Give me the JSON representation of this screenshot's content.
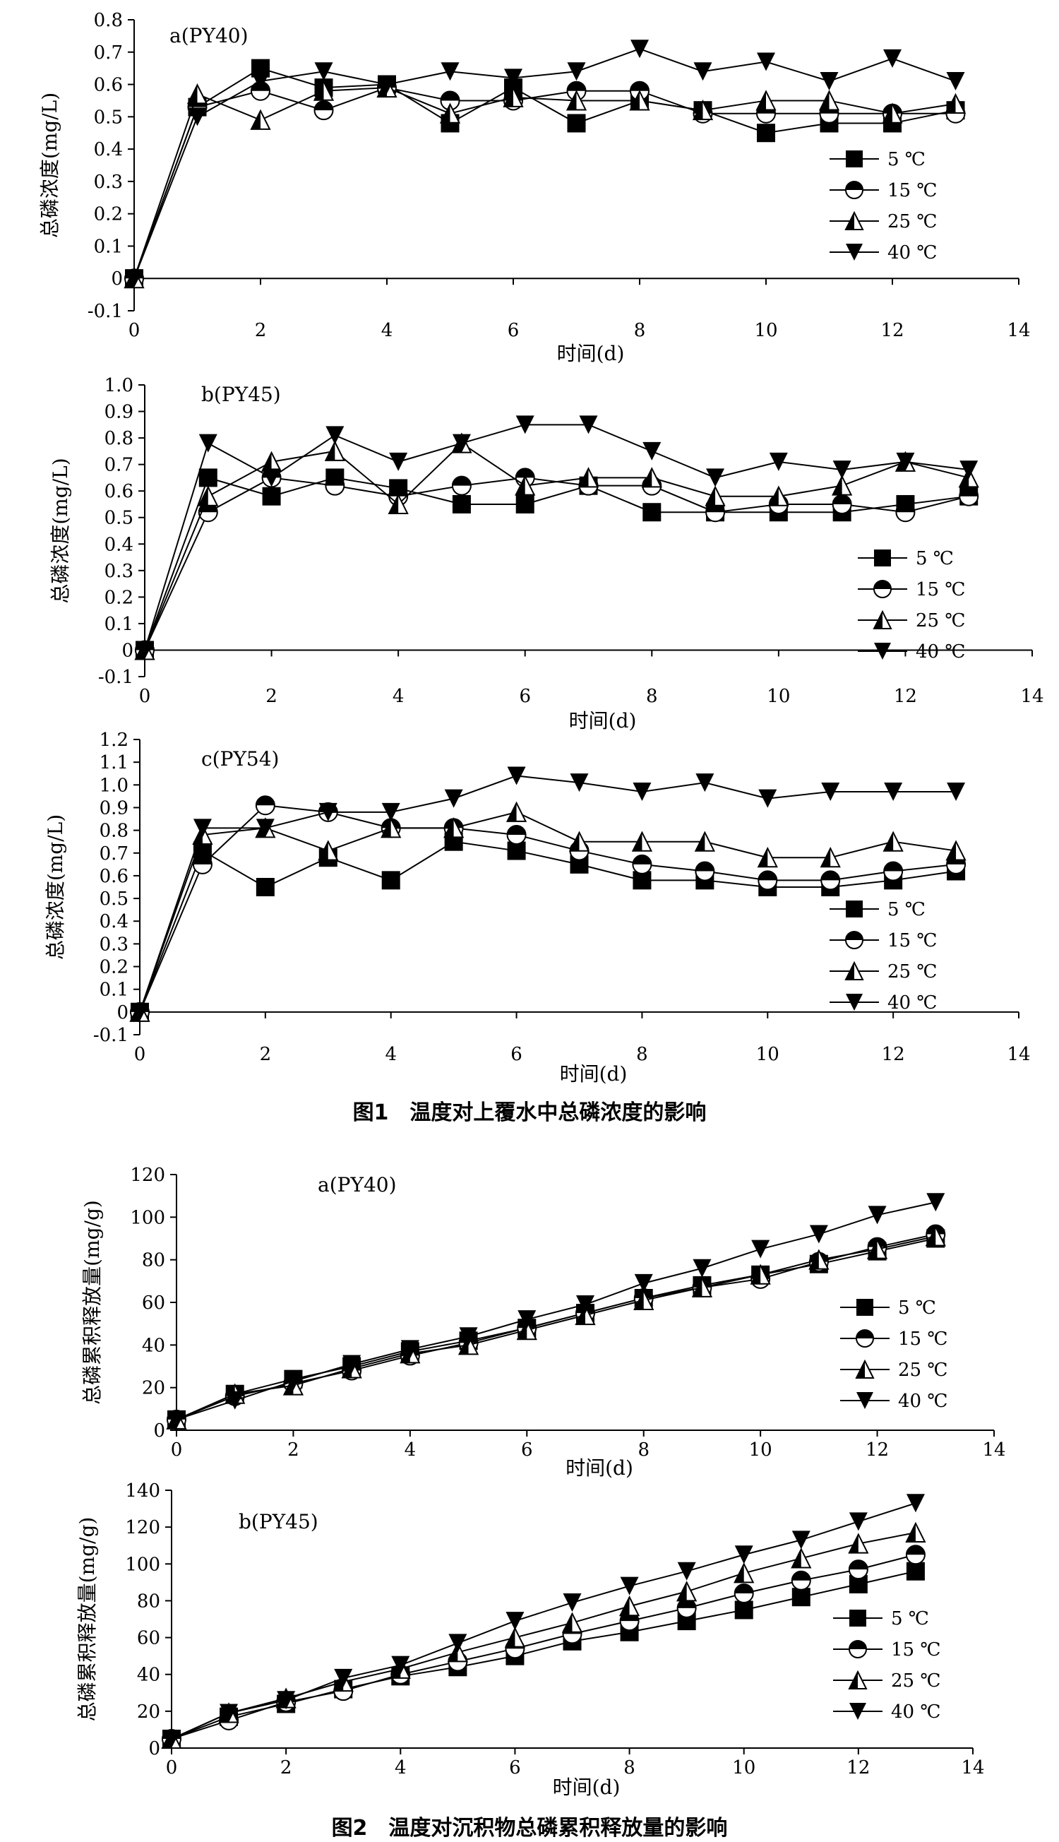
{
  "legend": [
    "5 ℃",
    "15 ℃",
    "25 ℃",
    "40 ℃"
  ],
  "captions": {
    "fig1": "图1　温度对上覆水中总磷浓度的影响",
    "fig2": "图2　温度对沉积物总磷累积释放量的影响"
  },
  "chart_data": [
    {
      "type": "line",
      "title": "a(PY40)",
      "xlabel": "时间(d)",
      "ylabel": "总磷浓度(mg/L)",
      "x": [
        0,
        1,
        2,
        3,
        4,
        5,
        6,
        7,
        8,
        9,
        10,
        11,
        12,
        13
      ],
      "xlim": [
        0,
        14
      ],
      "ylim": [
        -0.1,
        0.8
      ],
      "xticks": [
        "0",
        "2",
        "4",
        "6",
        "8",
        "10",
        "12",
        "14"
      ],
      "yticks": [
        "-0.1",
        "0",
        "0.1",
        "0.2",
        "0.3",
        "0.4",
        "0.5",
        "0.6",
        "0.7",
        "0.8"
      ],
      "grid": false,
      "legend_position": "right-middle",
      "series": [
        {
          "name": "5 ℃",
          "marker": "square",
          "values": [
            0,
            0.53,
            0.65,
            0.59,
            0.6,
            0.48,
            0.59,
            0.48,
            0.55,
            0.52,
            0.45,
            0.48,
            0.48,
            0.52
          ]
        },
        {
          "name": "15 ℃",
          "marker": "half-circle",
          "values": [
            0,
            0.53,
            0.58,
            0.52,
            0.59,
            0.55,
            0.55,
            0.58,
            0.58,
            0.51,
            0.51,
            0.51,
            0.51,
            0.51
          ]
        },
        {
          "name": "25 ℃",
          "marker": "triangle-up",
          "values": [
            0,
            0.57,
            0.49,
            0.58,
            0.59,
            0.51,
            0.56,
            0.55,
            0.55,
            0.52,
            0.55,
            0.55,
            0.51,
            0.54
          ]
        },
        {
          "name": "40 ℃",
          "marker": "triangle-down",
          "values": [
            0,
            0.5,
            0.61,
            0.64,
            0.6,
            0.64,
            0.62,
            0.64,
            0.71,
            0.64,
            0.67,
            0.61,
            0.68,
            0.61
          ]
        }
      ]
    },
    {
      "type": "line",
      "title": "b(PY45)",
      "xlabel": "时间(d)",
      "ylabel": "总磷浓度(mg/L)",
      "x": [
        0,
        1,
        2,
        3,
        4,
        5,
        6,
        7,
        8,
        9,
        10,
        11,
        12,
        13
      ],
      "xlim": [
        0,
        14
      ],
      "ylim": [
        -0.1,
        1.0
      ],
      "xticks": [
        "0",
        "2",
        "4",
        "6",
        "8",
        "10",
        "12",
        "14"
      ],
      "yticks": [
        "-0.1",
        "0",
        "0.1",
        "0.2",
        "0.3",
        "0.4",
        "0.5",
        "0.6",
        "0.7",
        "0.8",
        "0.9",
        "1.0"
      ],
      "grid": false,
      "legend_position": "right-middle",
      "series": [
        {
          "name": "5 ℃",
          "marker": "square",
          "values": [
            0,
            0.65,
            0.58,
            0.65,
            0.61,
            0.55,
            0.55,
            0.62,
            0.52,
            0.52,
            0.52,
            0.52,
            0.55,
            0.58
          ]
        },
        {
          "name": "15 ℃",
          "marker": "half-circle",
          "values": [
            0,
            0.52,
            0.65,
            0.62,
            0.58,
            0.62,
            0.65,
            0.62,
            0.62,
            0.52,
            0.55,
            0.55,
            0.52,
            0.58
          ]
        },
        {
          "name": "25 ℃",
          "marker": "triangle-up",
          "values": [
            0,
            0.58,
            0.71,
            0.75,
            0.55,
            0.78,
            0.62,
            0.65,
            0.65,
            0.58,
            0.58,
            0.62,
            0.71,
            0.65
          ]
        },
        {
          "name": "40 ℃",
          "marker": "triangle-down",
          "values": [
            0,
            0.78,
            0.65,
            0.81,
            0.71,
            0.78,
            0.85,
            0.85,
            0.75,
            0.65,
            0.71,
            0.68,
            0.71,
            0.68
          ]
        }
      ]
    },
    {
      "type": "line",
      "title": "c(PY54)",
      "xlabel": "时间(d)",
      "ylabel": "总磷浓度(mg/L)",
      "x": [
        0,
        1,
        2,
        3,
        4,
        5,
        6,
        7,
        8,
        9,
        10,
        11,
        12,
        13
      ],
      "xlim": [
        0,
        14
      ],
      "ylim": [
        -0.1,
        1.2
      ],
      "xticks": [
        "0",
        "2",
        "4",
        "6",
        "8",
        "10",
        "12",
        "14"
      ],
      "yticks": [
        "-0.1",
        "0",
        "0.1",
        "0.2",
        "0.3",
        "0.4",
        "0.5",
        "0.6",
        "0.7",
        "0.8",
        "0.9",
        "1.0",
        "1.1",
        "1.2"
      ],
      "grid": false,
      "legend_position": "right-bottom",
      "series": [
        {
          "name": "5 ℃",
          "marker": "square",
          "values": [
            0,
            0.71,
            0.55,
            0.68,
            0.58,
            0.75,
            0.71,
            0.65,
            0.58,
            0.58,
            0.55,
            0.55,
            0.58,
            0.62
          ]
        },
        {
          "name": "15 ℃",
          "marker": "half-circle",
          "values": [
            0,
            0.65,
            0.91,
            0.88,
            0.81,
            0.81,
            0.78,
            0.71,
            0.65,
            0.62,
            0.58,
            0.58,
            0.62,
            0.65
          ]
        },
        {
          "name": "25 ℃",
          "marker": "triangle-up",
          "values": [
            0,
            0.78,
            0.81,
            0.71,
            0.81,
            0.81,
            0.88,
            0.75,
            0.75,
            0.75,
            0.68,
            0.68,
            0.75,
            0.71
          ]
        },
        {
          "name": "40 ℃",
          "marker": "triangle-down",
          "values": [
            0,
            0.81,
            0.81,
            0.88,
            0.88,
            0.94,
            1.04,
            1.01,
            0.97,
            1.01,
            0.94,
            0.97,
            0.97,
            0.97
          ]
        }
      ]
    },
    {
      "type": "line",
      "title": "a(PY40)",
      "xlabel": "时间(d)",
      "ylabel": "总磷累积释放量(mg/g)",
      "x": [
        0,
        1,
        2,
        3,
        4,
        5,
        6,
        7,
        8,
        9,
        10,
        11,
        12,
        13
      ],
      "xlim": [
        0,
        14
      ],
      "ylim": [
        0,
        120
      ],
      "xticks": [
        "0",
        "2",
        "4",
        "6",
        "8",
        "10",
        "12",
        "14"
      ],
      "yticks": [
        "0",
        "20",
        "40",
        "60",
        "80",
        "100",
        "120"
      ],
      "grid": false,
      "legend_position": "right-middle",
      "series": [
        {
          "name": "5 ℃",
          "marker": "square",
          "values": [
            5,
            17,
            24,
            30,
            37,
            42,
            48,
            55,
            62,
            68,
            73,
            78,
            84,
            90
          ]
        },
        {
          "name": "15 ℃",
          "marker": "half-circle",
          "values": [
            5,
            16,
            22,
            28,
            35,
            41,
            48,
            55,
            62,
            67,
            71,
            79,
            86,
            92
          ]
        },
        {
          "name": "25 ℃",
          "marker": "triangle-up",
          "values": [
            5,
            17,
            21,
            29,
            36,
            40,
            47,
            54,
            61,
            67,
            73,
            80,
            85,
            91
          ]
        },
        {
          "name": "40 ℃",
          "marker": "triangle-down",
          "values": [
            5,
            14,
            23,
            31,
            38,
            44,
            52,
            59,
            69,
            76,
            85,
            92,
            101,
            107
          ]
        }
      ]
    },
    {
      "type": "line",
      "title": "b(PY45)",
      "xlabel": "时间(d)",
      "ylabel": "总磷累积释放量(mg/g)",
      "x": [
        0,
        1,
        2,
        3,
        4,
        5,
        6,
        7,
        8,
        9,
        10,
        11,
        12,
        13
      ],
      "xlim": [
        0,
        14
      ],
      "ylim": [
        0,
        140
      ],
      "xticks": [
        "0",
        "2",
        "4",
        "6",
        "8",
        "10",
        "12",
        "14"
      ],
      "yticks": [
        "0",
        "20",
        "40",
        "60",
        "80",
        "100",
        "120",
        "140"
      ],
      "grid": false,
      "legend_position": "right-bottom",
      "series": [
        {
          "name": "5 ℃",
          "marker": "square",
          "values": [
            5,
            17,
            24,
            32,
            39,
            44,
            50,
            58,
            63,
            69,
            75,
            82,
            89,
            96
          ]
        },
        {
          "name": "15 ℃",
          "marker": "half-circle",
          "values": [
            5,
            15,
            25,
            31,
            40,
            47,
            54,
            62,
            69,
            76,
            84,
            91,
            97,
            105
          ]
        },
        {
          "name": "25 ℃",
          "marker": "triangle-up",
          "values": [
            5,
            19,
            27,
            36,
            43,
            52,
            60,
            68,
            77,
            85,
            95,
            103,
            111,
            117
          ]
        },
        {
          "name": "40 ℃",
          "marker": "triangle-down",
          "values": [
            5,
            19,
            26,
            38,
            45,
            57,
            69,
            79,
            88,
            96,
            105,
            113,
            123,
            133
          ]
        }
      ]
    }
  ]
}
